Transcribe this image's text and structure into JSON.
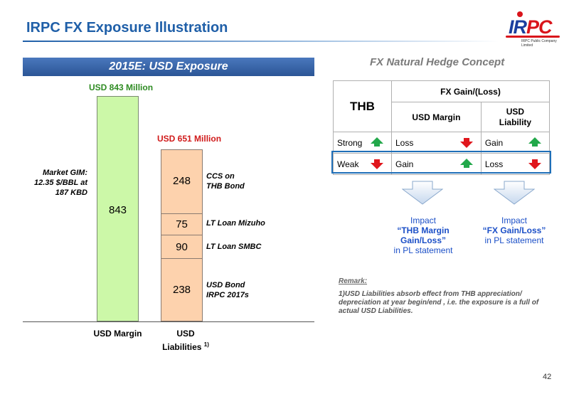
{
  "title": "IRPC FX Exposure Illustration",
  "logo": {
    "main_blue": "IR",
    "main_red": "PC",
    "tagline": "IRPC Public Company Limited"
  },
  "exposure": {
    "banner": "2015E: USD Exposure",
    "usd_margin_total": "USD 843 Million",
    "usd_liabilities_total": "USD 651 Million",
    "market_gim": [
      "Market GIM:",
      "12.35 $/BBL at",
      "187 KBD"
    ],
    "usd_margin_value": "843",
    "segments": [
      {
        "value": "248",
        "label": [
          "CCS on",
          "THB Bond"
        ]
      },
      {
        "value": "75",
        "label": [
          "LT Loan Mizuho"
        ]
      },
      {
        "value": "90",
        "label": [
          "LT Loan SMBC"
        ]
      },
      {
        "value": "238",
        "label": [
          "USD Bond",
          "IRPC 2017s"
        ]
      }
    ],
    "axis_labels": {
      "margin": "USD Margin",
      "liabilities_1": "USD",
      "liabilities_2": "Liabilities",
      "liabilities_note": "1)"
    }
  },
  "hedge": {
    "title": "FX Natural Hedge Concept",
    "thb_header": "THB",
    "fx_header": "FX Gain/(Loss)",
    "col_margin": "USD Margin",
    "col_liability_1": "USD",
    "col_liability_2": "Liability",
    "rows": [
      {
        "name": "Strong",
        "dir": "up",
        "margin": "Loss",
        "margin_dir": "down",
        "liability": "Gain",
        "liability_dir": "up"
      },
      {
        "name": "Weak",
        "dir": "down",
        "margin": "Gain",
        "margin_dir": "up",
        "liability": "Loss",
        "liability_dir": "down"
      }
    ],
    "impact_left": {
      "line1": "Impact",
      "line2": "“THB Margin",
      "line3": "Gain/Loss”",
      "line4": "in PL statement"
    },
    "impact_right": {
      "line1": "Impact",
      "line2": "“FX Gain/Loss”",
      "line3": "in PL statement"
    }
  },
  "remark": {
    "title": "Remark:",
    "body": "1)USD Liabilities absorb effect from THB appreciation/ depreciation at year begin/end , i.e. the exposure is a full of actual USD Liabilities."
  },
  "page_number": "42",
  "colors": {
    "accent": "#1f5fa8",
    "margin_bar": "#ccf8a8",
    "liability_bar": "#fdd2ad",
    "up": "#22a84a",
    "down": "#e0161c",
    "impact": "#1b4fc7"
  }
}
